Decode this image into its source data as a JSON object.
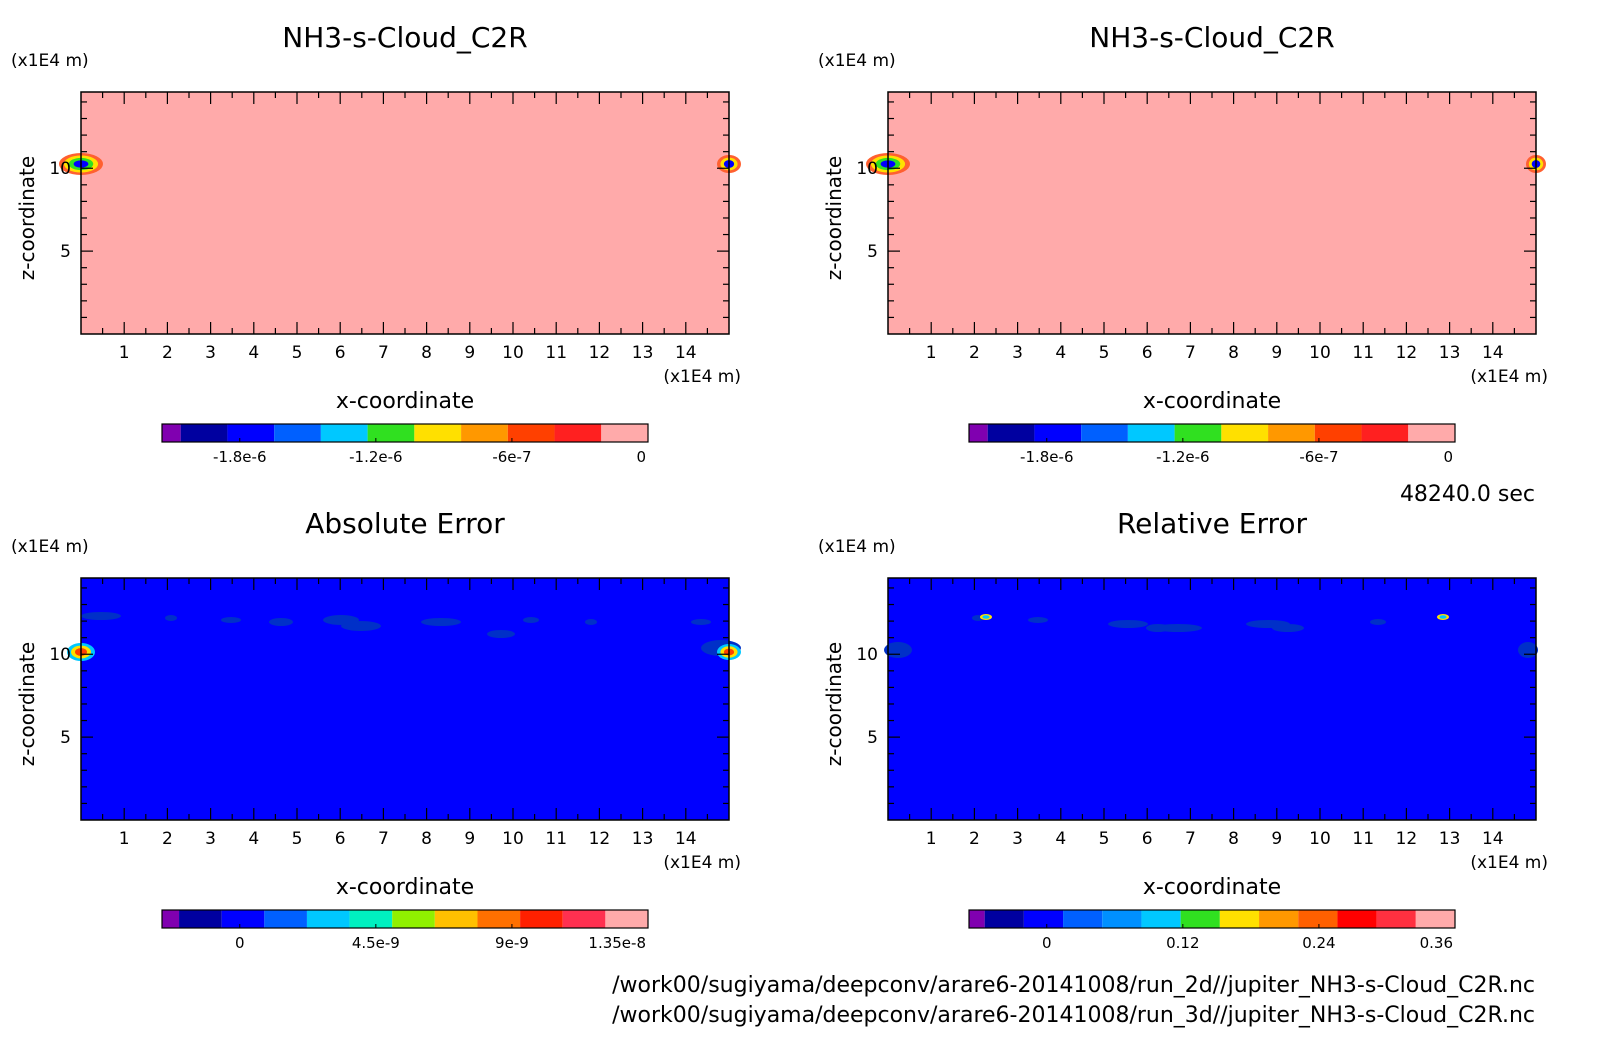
{
  "time_label": "48240.0 sec",
  "file_paths": [
    "/work00/sugiyama/deepconv/arare6-20141008/run_2d//jupiter_NH3-s-Cloud_C2R.nc",
    "/work00/sugiyama/deepconv/arare6-20141008/run_3d//jupiter_NH3-s-Cloud_C2R.nc"
  ],
  "chart_data": [
    {
      "type": "heatmap",
      "title": "NH3-s-Cloud_C2R",
      "xlabel": "x-coordinate",
      "ylabel": "z-coordinate",
      "x_unit": "(x1E4 m)",
      "y_unit": "(x1E4 m)",
      "xlim": [
        0,
        15
      ],
      "ylim": [
        0,
        14.6
      ],
      "x_ticks": [
        "1",
        "2",
        "3",
        "4",
        "5",
        "6",
        "7",
        "8",
        "9",
        "10",
        "11",
        "12",
        "13",
        "14"
      ],
      "y_ticks": [
        "5",
        "10"
      ],
      "background_color": "#ffaaaa",
      "colorbar": {
        "colors": [
          "#8000b0",
          "#0000a0",
          "#0000ff",
          "#0060ff",
          "#00c8ff",
          "#30e020",
          "#ffe000",
          "#ff9800",
          "#ff4000",
          "#ff2020",
          "#ffaaaa"
        ],
        "ticks": [
          "-1.8e-6",
          "-1.2e-6",
          "-6e-7",
          "0"
        ]
      }
    },
    {
      "type": "heatmap",
      "title": "NH3-s-Cloud_C2R",
      "xlabel": "x-coordinate",
      "ylabel": "z-coordinate",
      "x_unit": "(x1E4 m)",
      "y_unit": "(x1E4 m)",
      "xlim": [
        0,
        15
      ],
      "ylim": [
        0,
        14.6
      ],
      "x_ticks": [
        "1",
        "2",
        "3",
        "4",
        "5",
        "6",
        "7",
        "8",
        "9",
        "10",
        "11",
        "12",
        "13",
        "14"
      ],
      "y_ticks": [
        "5",
        "10"
      ],
      "background_color": "#ffaaaa",
      "colorbar": {
        "colors": [
          "#8000b0",
          "#0000a0",
          "#0000ff",
          "#0060ff",
          "#00c8ff",
          "#30e020",
          "#ffe000",
          "#ff9800",
          "#ff4000",
          "#ff2020",
          "#ffaaaa"
        ],
        "ticks": [
          "-1.8e-6",
          "-1.2e-6",
          "-6e-7",
          "0"
        ]
      }
    },
    {
      "type": "heatmap",
      "title": "Absolute Error",
      "xlabel": "x-coordinate",
      "ylabel": "z-coordinate",
      "x_unit": "(x1E4 m)",
      "y_unit": "(x1E4 m)",
      "xlim": [
        0,
        15
      ],
      "ylim": [
        0,
        14.6
      ],
      "x_ticks": [
        "1",
        "2",
        "3",
        "4",
        "5",
        "6",
        "7",
        "8",
        "9",
        "10",
        "11",
        "12",
        "13",
        "14"
      ],
      "y_ticks": [
        "5",
        "10"
      ],
      "background_color": "#0000ff",
      "colorbar": {
        "colors": [
          "#8000b0",
          "#0000a0",
          "#0000ff",
          "#0060ff",
          "#00c8ff",
          "#00f0c0",
          "#90f000",
          "#ffc000",
          "#ff7000",
          "#ff2000",
          "#ff3050",
          "#ffaaaa"
        ],
        "ticks": [
          "0",
          "4.5e-9",
          "9e-9",
          "1.35e-8"
        ]
      }
    },
    {
      "type": "heatmap",
      "title": "Relative Error",
      "xlabel": "x-coordinate",
      "ylabel": "z-coordinate",
      "x_unit": "(x1E4 m)",
      "y_unit": "(x1E4 m)",
      "xlim": [
        0,
        15
      ],
      "ylim": [
        0,
        14.6
      ],
      "x_ticks": [
        "1",
        "2",
        "3",
        "4",
        "5",
        "6",
        "7",
        "8",
        "9",
        "10",
        "11",
        "12",
        "13",
        "14"
      ],
      "y_ticks": [
        "5",
        "10"
      ],
      "background_color": "#0000ff",
      "colorbar": {
        "colors": [
          "#8000b0",
          "#0000a0",
          "#0000ff",
          "#0060ff",
          "#0090ff",
          "#00c8ff",
          "#30e020",
          "#ffe000",
          "#ff9800",
          "#ff6000",
          "#ff0000",
          "#ff3040",
          "#ffaaaa"
        ],
        "ticks": [
          "0",
          "0.12",
          "0.24",
          "0.36"
        ]
      }
    }
  ]
}
